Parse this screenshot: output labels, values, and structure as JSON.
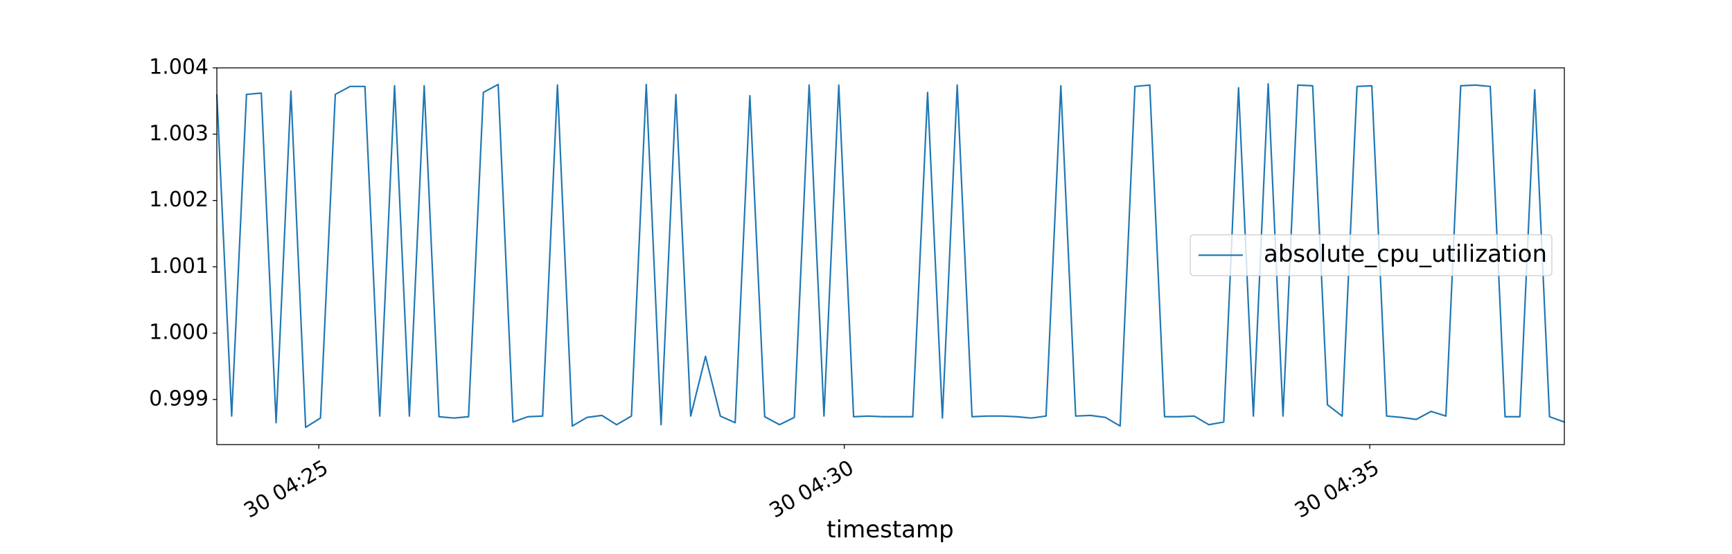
{
  "chart_data": {
    "type": "line",
    "x_label": "timestamp",
    "x": [
      24.03,
      24.171,
      24.312,
      24.453,
      24.594,
      24.735,
      24.875,
      25.016,
      25.157,
      25.298,
      25.439,
      25.58,
      25.721,
      25.862,
      26.003,
      26.144,
      26.284,
      26.425,
      26.566,
      26.707,
      26.848,
      26.989,
      27.13,
      27.271,
      27.412,
      27.553,
      27.693,
      27.834,
      27.975,
      28.116,
      28.257,
      28.398,
      28.539,
      28.68,
      28.821,
      28.962,
      29.102,
      29.243,
      29.384,
      29.525,
      29.666,
      29.807,
      29.948,
      30.089,
      30.23,
      30.371,
      30.511,
      30.652,
      30.793,
      30.934,
      31.075,
      31.216,
      31.357,
      31.498,
      31.639,
      31.78,
      31.92,
      32.061,
      32.202,
      32.343,
      32.484,
      32.625,
      32.766,
      32.907,
      33.048,
      33.189,
      33.329,
      33.47,
      33.611,
      33.752,
      33.893,
      34.034,
      34.175,
      34.316,
      34.457,
      34.598,
      34.738,
      34.879,
      35.02,
      35.161,
      35.302,
      35.443,
      35.584,
      35.725,
      35.866,
      36.007,
      36.147,
      36.288,
      36.429,
      36.57,
      36.711,
      36.852
    ],
    "series": [
      {
        "name": "absolute_cpu_utilization",
        "color": "#1f77b4",
        "values": [
          1.0036,
          0.99875,
          1.0036,
          1.00362,
          0.99865,
          1.00365,
          0.99858,
          0.99872,
          1.0036,
          1.00372,
          1.00372,
          0.99875,
          1.00373,
          0.99875,
          1.00373,
          0.99874,
          0.99872,
          0.99874,
          1.00363,
          1.00375,
          0.99866,
          0.99874,
          0.99875,
          1.00374,
          0.9986,
          0.99873,
          0.99876,
          0.99862,
          0.99875,
          1.00375,
          0.99862,
          1.0036,
          0.99875,
          0.99965,
          0.99875,
          0.99865,
          1.00358,
          0.99874,
          0.99862,
          0.99873,
          1.00374,
          0.99875,
          1.00374,
          0.99874,
          0.99875,
          0.99874,
          0.99874,
          0.99874,
          1.00363,
          0.99872,
          1.00374,
          0.99874,
          0.99875,
          0.99875,
          0.99874,
          0.99872,
          0.99875,
          1.00373,
          0.99875,
          0.99876,
          0.99873,
          0.9986,
          1.00372,
          1.00374,
          0.99874,
          0.99874,
          0.99875,
          0.99862,
          0.99866,
          1.0037,
          0.99875,
          1.00376,
          0.99875,
          1.00374,
          1.00373,
          0.99892,
          0.99875,
          1.00372,
          1.00373,
          0.99875,
          0.99873,
          0.9987,
          0.99882,
          0.99875,
          1.00373,
          1.00374,
          1.00372,
          0.99874,
          0.99874,
          1.00367,
          0.99874,
          0.99866
        ]
      }
    ],
    "xlim": [
      24.03,
      36.852
    ],
    "xticks": [
      {
        "value": 25,
        "label": "30 04:25"
      },
      {
        "value": 30,
        "label": "30 04:30"
      },
      {
        "value": 35,
        "label": "30 04:35"
      }
    ],
    "ylim": [
      0.99832,
      1.004
    ],
    "yticks": [
      0.999,
      {
        "value": 1,
        "label": "1.000"
      },
      1.001,
      1.002,
      1.003,
      1.004
    ],
    "grid": false,
    "legend": "right"
  }
}
